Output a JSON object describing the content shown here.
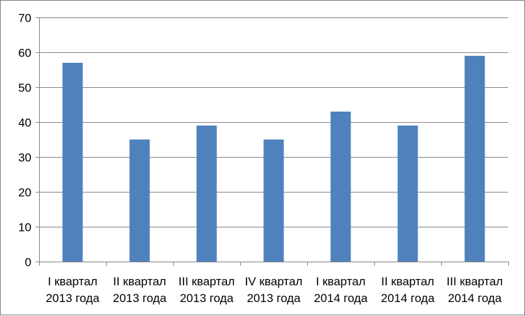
{
  "chart_data": {
    "type": "bar",
    "title": "",
    "xlabel": "",
    "ylabel": "",
    "ylim": [
      0,
      70
    ],
    "yticks": [
      0,
      10,
      20,
      30,
      40,
      50,
      60,
      70
    ],
    "grid": true,
    "legend": "none",
    "bar_color": "#4f81bd",
    "categories": [
      [
        "I квартал",
        "2013 года"
      ],
      [
        "II квартал",
        "2013 года"
      ],
      [
        "III квартал",
        "2013 года"
      ],
      [
        "IV квартал",
        "2013 года"
      ],
      [
        "I квартал",
        "2014 года"
      ],
      [
        "II квартал",
        "2014 года"
      ],
      [
        "III квартал",
        "2014 года"
      ]
    ],
    "values": [
      57,
      35,
      39,
      35,
      43,
      39,
      59
    ]
  },
  "colors": {
    "axis": "#868686",
    "grid": "#868686",
    "border": "#7f7f7f"
  }
}
